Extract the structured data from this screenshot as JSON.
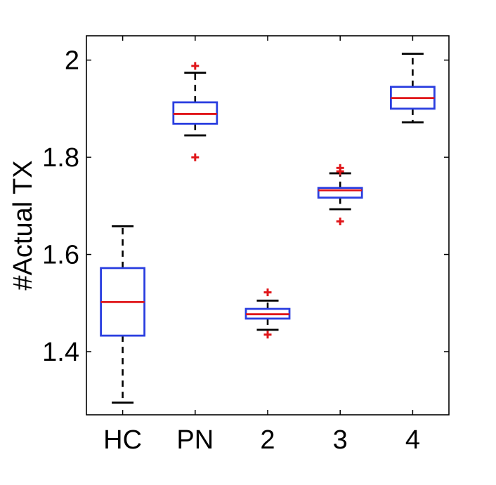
{
  "chart_data": {
    "type": "box",
    "title": "",
    "xlabel": "",
    "ylabel": "#Actual TX",
    "ylim": [
      1.27,
      2.05
    ],
    "yticks": [
      1.4,
      1.6,
      1.8,
      2.0
    ],
    "ytick_labels": [
      "1.4",
      "1.6",
      "1.8",
      "2"
    ],
    "categories": [
      "HC",
      "PN",
      "2",
      "3",
      "4"
    ],
    "boxes": [
      {
        "category": "HC",
        "whisker_low": 1.295,
        "q1": 1.433,
        "median": 1.502,
        "q3": 1.572,
        "whisker_high": 1.658,
        "outliers": []
      },
      {
        "category": "PN",
        "whisker_low": 1.845,
        "q1": 1.869,
        "median": 1.889,
        "q3": 1.913,
        "whisker_high": 1.974,
        "outliers": [
          1.988,
          1.8
        ]
      },
      {
        "category": "2",
        "whisker_low": 1.445,
        "q1": 1.468,
        "median": 1.477,
        "q3": 1.488,
        "whisker_high": 1.505,
        "outliers": [
          1.522,
          1.435
        ]
      },
      {
        "category": "3",
        "whisker_low": 1.693,
        "q1": 1.717,
        "median": 1.732,
        "q3": 1.737,
        "whisker_high": 1.767,
        "outliers": [
          1.778,
          1.771,
          1.668
        ]
      },
      {
        "category": "4",
        "whisker_low": 1.872,
        "q1": 1.9,
        "median": 1.922,
        "q3": 1.945,
        "whisker_high": 2.013,
        "outliers": []
      }
    ],
    "colors": {
      "box": "#2b3fe0",
      "median": "#e0161a",
      "outlier": "#e0161a",
      "whisker": "#000000"
    },
    "grid": false,
    "legend": "none"
  }
}
